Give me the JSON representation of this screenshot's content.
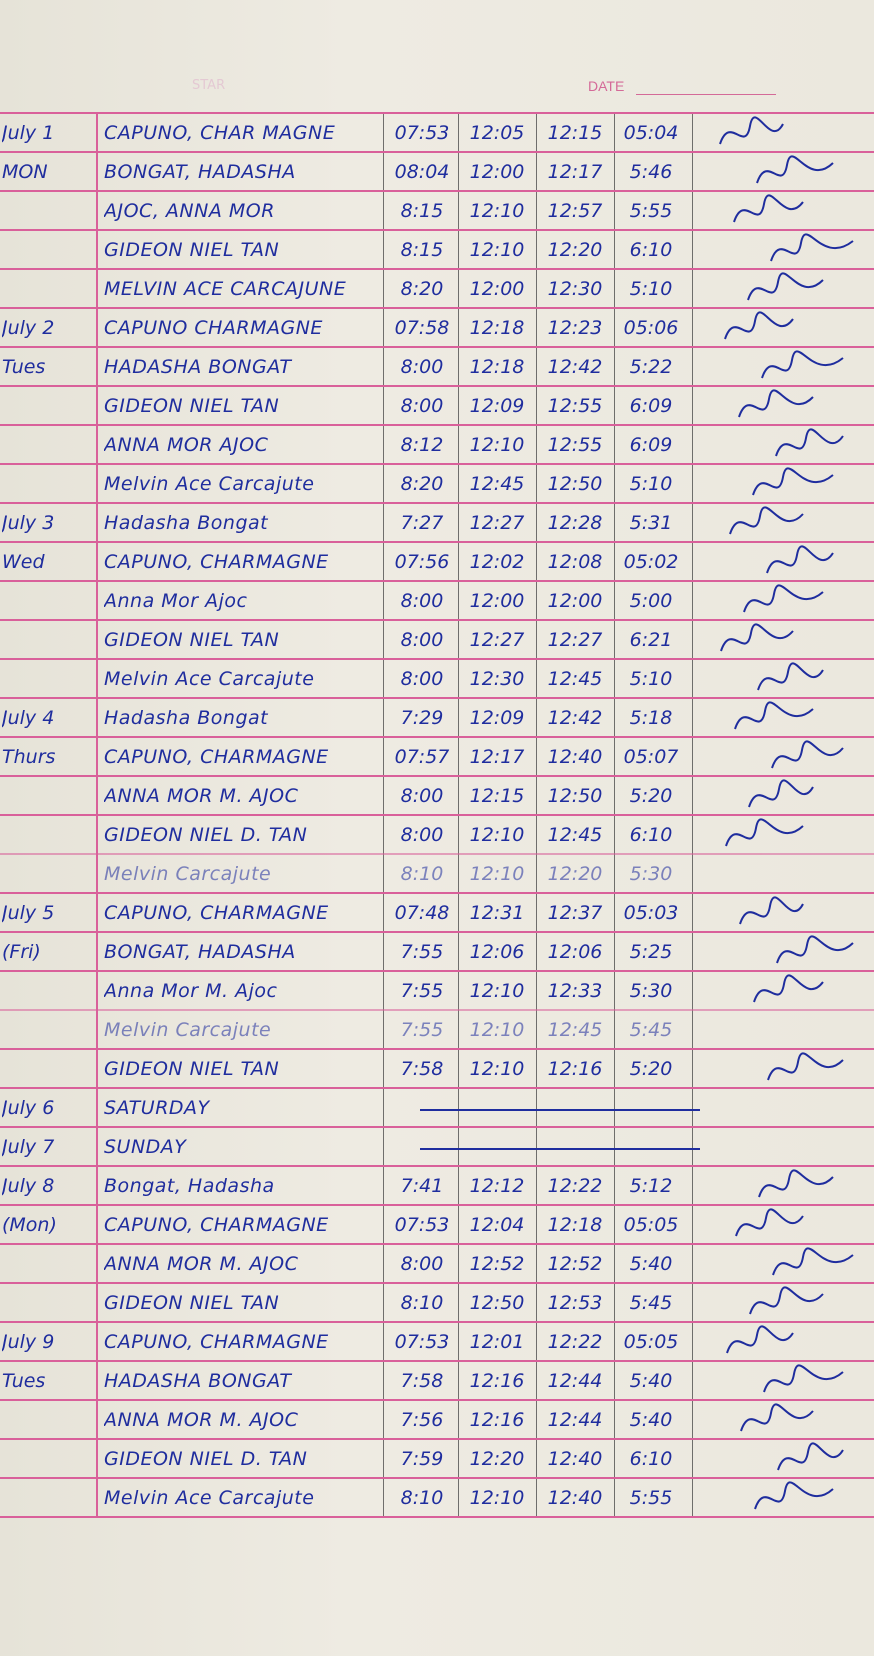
{
  "header": {
    "date_label": "DATE",
    "faded_label": "STAR"
  },
  "colors": {
    "ink": "#1f2d9e",
    "rule": "#d9609a",
    "paper": "#e9e6dc"
  },
  "rows": [
    {
      "date": "July 1",
      "name": "CAPUNO, CHAR MAGNE",
      "t": [
        "07:53",
        "12:05",
        "12:15",
        "05:04"
      ],
      "signed": true
    },
    {
      "date": "MON",
      "name": "BONGAT, HADASHA",
      "t": [
        "08:04",
        "12:00",
        "12:17",
        "5:46"
      ],
      "signed": true
    },
    {
      "date": "",
      "name": "AJOC, ANNA MOR",
      "t": [
        "8:15",
        "12:10",
        "12:57",
        "5:55"
      ],
      "signed": true
    },
    {
      "date": "",
      "name": "GIDEON NIEL TAN",
      "t": [
        "8:15",
        "12:10",
        "12:20",
        "6:10"
      ],
      "signed": true
    },
    {
      "date": "",
      "name": "MELVIN ACE CARCAJUNE",
      "t": [
        "8:20",
        "12:00",
        "12:30",
        "5:10"
      ],
      "signed": true
    },
    {
      "date": "July 2",
      "name": "CAPUNO CHARMAGNE",
      "t": [
        "07:58",
        "12:18",
        "12:23",
        "05:06"
      ],
      "signed": true
    },
    {
      "date": "Tues",
      "name": "HADASHA BONGAT",
      "t": [
        "8:00",
        "12:18",
        "12:42",
        "5:22"
      ],
      "signed": true
    },
    {
      "date": "",
      "name": "GIDEON NIEL TAN",
      "t": [
        "8:00",
        "12:09",
        "12:55",
        "6:09"
      ],
      "signed": true
    },
    {
      "date": "",
      "name": "ANNA MOR AJOC",
      "t": [
        "8:12",
        "12:10",
        "12:55",
        "6:09"
      ],
      "signed": true
    },
    {
      "date": "",
      "name": "Melvin Ace Carcajute",
      "t": [
        "8:20",
        "12:45",
        "12:50",
        "5:10"
      ],
      "signed": true
    },
    {
      "date": "July 3",
      "name": "Hadasha Bongat",
      "t": [
        "7:27",
        "12:27",
        "12:28",
        "5:31"
      ],
      "signed": true
    },
    {
      "date": "Wed",
      "name": "CAPUNO, CHARMAGNE",
      "t": [
        "07:56",
        "12:02",
        "12:08",
        "05:02"
      ],
      "signed": true
    },
    {
      "date": "",
      "name": "Anna Mor Ajoc",
      "t": [
        "8:00",
        "12:00",
        "12:00",
        "5:00"
      ],
      "signed": true
    },
    {
      "date": "",
      "name": "GIDEON NIEL TAN",
      "t": [
        "8:00",
        "12:27",
        "12:27",
        "6:21"
      ],
      "signed": true
    },
    {
      "date": "",
      "name": "Melvin Ace Carcajute",
      "t": [
        "8:00",
        "12:30",
        "12:45",
        "5:10"
      ],
      "signed": true
    },
    {
      "date": "July 4",
      "name": "Hadasha Bongat",
      "t": [
        "7:29",
        "12:09",
        "12:42",
        "5:18"
      ],
      "signed": true
    },
    {
      "date": "Thurs",
      "name": "CAPUNO, CHARMAGNE",
      "t": [
        "07:57",
        "12:17",
        "12:40",
        "05:07"
      ],
      "signed": true
    },
    {
      "date": "",
      "name": "ANNA MOR M. AJOC",
      "t": [
        "8:00",
        "12:15",
        "12:50",
        "5:20"
      ],
      "signed": true
    },
    {
      "date": "",
      "name": "GIDEON NIEL D. TAN",
      "t": [
        "8:00",
        "12:10",
        "12:45",
        "6:10"
      ],
      "signed": true
    },
    {
      "date": "",
      "name": "Melvin Carcajute",
      "t": [
        "8:10",
        "12:10",
        "12:20",
        "5:30"
      ],
      "signed": false,
      "faint": true
    },
    {
      "date": "July 5",
      "name": "CAPUNO, CHARMAGNE",
      "t": [
        "07:48",
        "12:31",
        "12:37",
        "05:03"
      ],
      "signed": true
    },
    {
      "date": "(Fri)",
      "name": "BONGAT, HADASHA",
      "t": [
        "7:55",
        "12:06",
        "12:06",
        "5:25"
      ],
      "signed": true
    },
    {
      "date": "",
      "name": "Anna Mor M. Ajoc",
      "t": [
        "7:55",
        "12:10",
        "12:33",
        "5:30"
      ],
      "signed": true
    },
    {
      "date": "",
      "name": "Melvin Carcajute",
      "t": [
        "7:55",
        "12:10",
        "12:45",
        "5:45"
      ],
      "signed": false,
      "faint": true
    },
    {
      "date": "",
      "name": "GIDEON NIEL TAN",
      "t": [
        "7:58",
        "12:10",
        "12:16",
        "5:20"
      ],
      "signed": true
    },
    {
      "date": "July 6",
      "name": "SATURDAY",
      "t": [],
      "line": true
    },
    {
      "date": "July 7",
      "name": "SUNDAY",
      "t": [],
      "line": true
    },
    {
      "date": "July 8",
      "name": "Bongat, Hadasha",
      "t": [
        "7:41",
        "12:12",
        "12:22",
        "5:12"
      ],
      "signed": true
    },
    {
      "date": "(Mon)",
      "name": "CAPUNO, CHARMAGNE",
      "t": [
        "07:53",
        "12:04",
        "12:18",
        "05:05"
      ],
      "signed": true
    },
    {
      "date": "",
      "name": "ANNA MOR M. AJOC",
      "t": [
        "8:00",
        "12:52",
        "12:52",
        "5:40"
      ],
      "signed": true
    },
    {
      "date": "",
      "name": "GIDEON NIEL TAN",
      "t": [
        "8:10",
        "12:50",
        "12:53",
        "5:45"
      ],
      "signed": true
    },
    {
      "date": "July 9",
      "name": "CAPUNO, CHARMAGNE",
      "t": [
        "07:53",
        "12:01",
        "12:22",
        "05:05"
      ],
      "signed": true
    },
    {
      "date": "Tues",
      "name": "HADASHA BONGAT",
      "t": [
        "7:58",
        "12:16",
        "12:44",
        "5:40"
      ],
      "signed": true
    },
    {
      "date": "",
      "name": "ANNA MOR M. AJOC",
      "t": [
        "7:56",
        "12:16",
        "12:44",
        "5:40"
      ],
      "signed": true
    },
    {
      "date": "",
      "name": "GIDEON NIEL D. TAN",
      "t": [
        "7:59",
        "12:20",
        "12:40",
        "6:10"
      ],
      "signed": true
    },
    {
      "date": "",
      "name": "Melvin Ace Carcajute",
      "t": [
        "8:10",
        "12:10",
        "12:40",
        "5:55"
      ],
      "signed": true
    }
  ]
}
